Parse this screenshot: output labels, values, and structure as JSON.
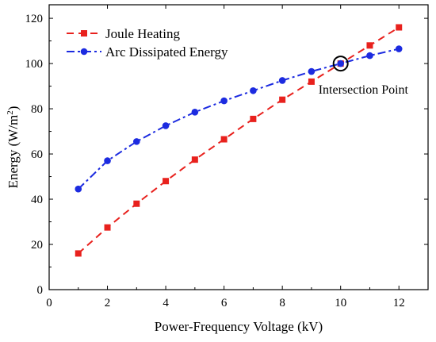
{
  "chart_data": {
    "type": "line",
    "title": "",
    "xlabel": "Power-Frequency Voltage (kV)",
    "ylabel_main": "Energy (W/m",
    "ylabel_sup": "2",
    "ylabel_end": ")",
    "xlim": [
      0,
      13
    ],
    "ylim": [
      0,
      126
    ],
    "xticks": [
      0,
      2,
      4,
      6,
      8,
      10,
      12
    ],
    "yticks": [
      0,
      20,
      40,
      60,
      80,
      100,
      120
    ],
    "grid": false,
    "legend_position": "top-left",
    "series": [
      {
        "name": "Joule Heating",
        "color": "#e8211d",
        "marker": "square",
        "line_style": "dashed",
        "x": [
          1,
          2,
          3,
          4,
          5,
          6,
          7,
          8,
          9,
          10,
          11,
          12
        ],
        "y": [
          16,
          27.5,
          38,
          48,
          57.5,
          66.5,
          75.5,
          84,
          92,
          100,
          108,
          116
        ]
      },
      {
        "name": "Arc Dissipated Energy",
        "color": "#1c2be0",
        "marker": "circle",
        "line_style": "dash-dot",
        "x": [
          1,
          2,
          3,
          4,
          5,
          6,
          7,
          8,
          9,
          10,
          11,
          12
        ],
        "y": [
          44.5,
          57,
          65.5,
          72.5,
          78.5,
          83.5,
          88,
          92.5,
          96.5,
          100,
          103.5,
          106.5
        ]
      }
    ],
    "annotation": {
      "text": "Intersection Point",
      "x": 10,
      "y": 100
    }
  }
}
